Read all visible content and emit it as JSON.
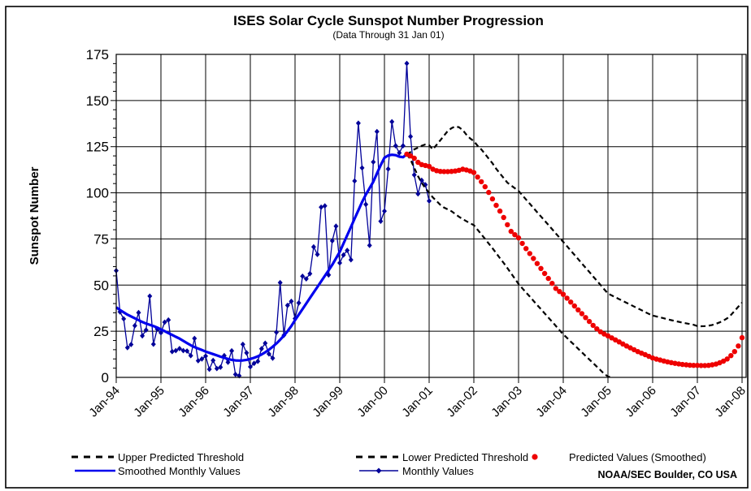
{
  "credit": {
    "text": "NOAA/SEC Boulder, CO USA",
    "color": "#0000CC"
  },
  "legend": {
    "items": [
      {
        "label": "Upper Predicted Threshold",
        "marker": "black-dashed-line"
      },
      {
        "label": "Lower Predicted Threshold",
        "marker": "black-dashed-line"
      },
      {
        "label": "Predicted Values (Smoothed)",
        "marker": "red-dot"
      },
      {
        "label": "Smoothed Monthly Values",
        "marker": "blue-solid-line"
      },
      {
        "label": "Monthly Values",
        "marker": "blue-line-diamond"
      }
    ]
  },
  "colors": {
    "monthly": "#000099",
    "smoothed": "#0000EE",
    "predicted": "#EE0000",
    "threshold": "#000000",
    "grid": "#000000",
    "credit": "#0000CC"
  },
  "y_axis": {
    "label": "Sunspot Number",
    "tick_values": [
      0,
      25,
      50,
      75,
      100,
      125,
      150,
      175
    ],
    "minor_step": 5
  },
  "x_axis": {
    "tick_labels": [
      "Jan-94",
      "Jan-95",
      "Jan-96",
      "Jan-97",
      "Jan-98",
      "Jan-99",
      "Jan-00",
      "Jan-01",
      "Jan-02",
      "Jan-03",
      "Jan-04",
      "Jan-05",
      "Jan-06",
      "Jan-07",
      "Jan-08"
    ]
  },
  "chart_data": {
    "type": "line",
    "title": "ISES Solar Cycle Sunspot Number Progression",
    "subtitle": "(Data Through 31 Jan 01)",
    "ylabel": "Sunspot Number",
    "xlabel": "",
    "ylim": [
      0,
      175
    ],
    "x_unit": "month",
    "x_origin": "Jan-1994",
    "x_months_total": 169,
    "grid": true,
    "legend_position": "bottom",
    "series": [
      {
        "name": "Monthly Values",
        "style": "line-diamond",
        "color": "#000099",
        "start_index": 0,
        "values": [
          57.8,
          35.5,
          31.7,
          16.1,
          17.8,
          28.0,
          35.1,
          22.5,
          25.7,
          44.0,
          18.0,
          26.2,
          24.2,
          29.9,
          31.1,
          14.0,
          14.5,
          15.6,
          14.5,
          14.3,
          11.8,
          21.1,
          9.0,
          10.0,
          11.5,
          4.4,
          9.2,
          4.8,
          5.5,
          11.8,
          8.2,
          14.4,
          1.6,
          0.9,
          17.9,
          13.3,
          5.7,
          7.6,
          8.7,
          15.5,
          18.5,
          12.7,
          10.4,
          24.4,
          51.3,
          22.8,
          39.0,
          41.2,
          31.9,
          40.3,
          54.8,
          53.4,
          56.2,
          70.7,
          66.6,
          92.2,
          92.9,
          55.5,
          74.0,
          81.9,
          62.0,
          66.3,
          68.8,
          63.7,
          106.4,
          137.7,
          113.5,
          93.7,
          71.5,
          116.7,
          133.2,
          84.6,
          90.1,
          112.9,
          138.5,
          125.5,
          121.6,
          125.5,
          170.1,
          130.5,
          109.7,
          99.4,
          106.8,
          104.4,
          95.6
        ]
      },
      {
        "name": "Smoothed Monthly Values",
        "style": "thick-line",
        "color": "#0000EE",
        "start_index": 0,
        "values": [
          38,
          36.5,
          35.2,
          34,
          33,
          32,
          31,
          30,
          29.2,
          28.5,
          27.8,
          27,
          26,
          25,
          24,
          23,
          22,
          21,
          19.8,
          18.6,
          17.4,
          16.4,
          15.6,
          14.8,
          14,
          13.3,
          12.6,
          11.9,
          11.2,
          10.6,
          10,
          9.5,
          9.2,
          9.1,
          9.2,
          9.5,
          10,
          10.6,
          11.4,
          12.4,
          13.6,
          15,
          16.6,
          18.4,
          20.4,
          22.6,
          25,
          27.8,
          31,
          34,
          37,
          40,
          43,
          46,
          49,
          52,
          55,
          58,
          61,
          64.5,
          68,
          72.5,
          77,
          81.5,
          86,
          90.5,
          95,
          99,
          102.5,
          106,
          110.5,
          115,
          119,
          120.2,
          120.6,
          120.4,
          119.6,
          119.3,
          120.9
        ]
      },
      {
        "name": "Upper Predicted Threshold",
        "style": "dashed",
        "color": "#000000",
        "start_index": 78,
        "values": [
          120.9,
          122,
          123.5,
          124.5,
          125.5,
          126.2,
          125.8,
          123.5,
          126,
          128.5,
          131,
          133.5,
          135,
          136,
          135.5,
          134,
          131.5,
          129.5,
          128,
          125.5,
          123.5,
          121,
          118.5,
          116,
          113,
          110.5,
          108,
          105.5,
          104,
          102.5,
          101,
          98.7,
          96.4,
          94.1,
          91.8,
          89.5,
          87.2,
          84.9,
          82.6,
          80.3,
          78,
          75.7,
          73.4,
          71.1,
          68.7,
          66.4,
          64.1,
          61.7,
          59.4,
          57.1,
          54.7,
          52.4,
          50.1,
          47.7,
          45.4,
          44.4,
          43.4,
          42.4,
          41.4,
          40.4,
          39.4,
          38.4,
          37.4,
          36.4,
          35.4,
          34.4,
          33.5,
          33,
          32.5,
          32,
          31.5,
          31,
          30.5,
          30.1,
          29.7,
          29.3,
          28.9,
          28.5,
          27.8,
          27.7,
          27.8,
          28,
          28.4,
          29,
          29.8,
          30.8,
          32,
          33.8,
          36,
          38.3,
          40.5
        ]
      },
      {
        "name": "Lower Predicted Threshold",
        "style": "dashed",
        "color": "#000000",
        "start_index": 78,
        "values": [
          120.9,
          118,
          113.5,
          109,
          105.5,
          102.5,
          100,
          97.5,
          95.5,
          93.5,
          92,
          91,
          90,
          88.5,
          87,
          85.8,
          84.6,
          83.5,
          82.5,
          80,
          77.5,
          75,
          72.5,
          70,
          67.3,
          64.6,
          62,
          59.2,
          56.4,
          53.5,
          50.6,
          48.3,
          46,
          43.8,
          41.5,
          39.2,
          37,
          34.7,
          32.4,
          30.2,
          27.9,
          25.6,
          23.3,
          21.4,
          19.4,
          17.5,
          15.5,
          13.6,
          11.6,
          9.7,
          7.8,
          5.8,
          3.9,
          1.9,
          0.5,
          0
        ]
      },
      {
        "name": "Predicted Values (Smoothed)",
        "style": "dots",
        "color": "#EE0000",
        "start_index": 78,
        "values": [
          120.9,
          120,
          118.7,
          116.5,
          115.3,
          114.8,
          114.3,
          112.8,
          112,
          111.6,
          111.5,
          111.5,
          111.6,
          111.8,
          112.2,
          112.8,
          112.4,
          111.8,
          111,
          108.5,
          106,
          103.3,
          100.2,
          96.7,
          93.2,
          90.1,
          86.6,
          82.7,
          79.1,
          77.3,
          75.6,
          72.6,
          69.8,
          67.1,
          64.4,
          61.7,
          59,
          56.3,
          53.6,
          50.9,
          48.2,
          46.5,
          45,
          42.9,
          40.8,
          38.7,
          36.6,
          34.5,
          32.4,
          30.3,
          28.2,
          26.3,
          24.7,
          23.5,
          22.5,
          21.4,
          20.3,
          19.2,
          18.1,
          17,
          16,
          15,
          14,
          13.1,
          12.3,
          11.4,
          10.5,
          9.9,
          9.4,
          8.9,
          8.4,
          8,
          7.6,
          7.3,
          7,
          6.8,
          6.6,
          6.5,
          6.5,
          6.4,
          6.4,
          6.5,
          6.8,
          7.2,
          7.9,
          8.8,
          10,
          11.8,
          14,
          17,
          21.5
        ]
      }
    ]
  }
}
